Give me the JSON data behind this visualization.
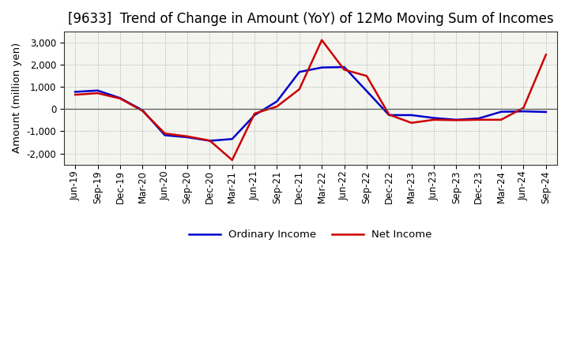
{
  "title": "[9633]  Trend of Change in Amount (YoY) of 12Mo Moving Sum of Incomes",
  "ylabel": "Amount (million yen)",
  "xlabels": [
    "Jun-19",
    "Sep-19",
    "Dec-19",
    "Mar-20",
    "Jun-20",
    "Sep-20",
    "Dec-20",
    "Mar-21",
    "Jun-21",
    "Sep-21",
    "Dec-21",
    "Mar-22",
    "Jun-22",
    "Sep-22",
    "Dec-22",
    "Mar-23",
    "Jun-23",
    "Sep-23",
    "Dec-23",
    "Mar-24",
    "Jun-24",
    "Sep-24"
  ],
  "ordinary_income": [
    780,
    840,
    500,
    -50,
    -1180,
    -1270,
    -1430,
    -1350,
    -270,
    350,
    1680,
    1880,
    1900,
    820,
    -270,
    -270,
    -400,
    -480,
    -420,
    -120,
    -100,
    -130
  ],
  "net_income": [
    650,
    720,
    480,
    -80,
    -1100,
    -1230,
    -1420,
    -2300,
    -200,
    120,
    900,
    3120,
    1780,
    1500,
    -250,
    -620,
    -480,
    -500,
    -480,
    -480,
    60,
    2460
  ],
  "ordinary_color": "#0000cc",
  "net_color": "#cc0000",
  "bg_color": "#ffffff",
  "plot_bg_color": "#f5f5f0",
  "grid_color": "#999999",
  "ylim": [
    -2500,
    3500
  ],
  "yticks": [
    -2000,
    -1000,
    0,
    1000,
    2000,
    3000
  ],
  "legend_labels": [
    "Ordinary Income",
    "Net Income"
  ],
  "title_fontsize": 12,
  "axis_fontsize": 9.5,
  "tick_fontsize": 8.5,
  "linewidth": 1.8
}
